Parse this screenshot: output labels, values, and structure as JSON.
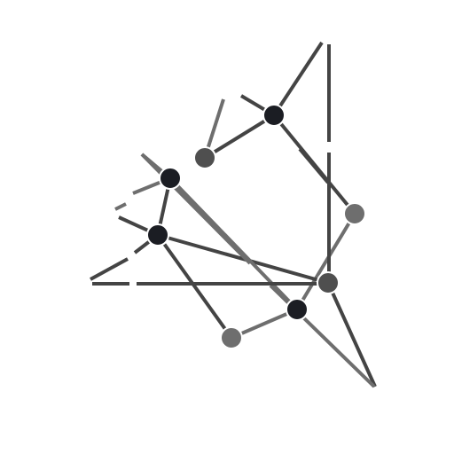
{
  "diagram": {
    "type": "network-graph",
    "background_color": "#ffffff",
    "colors": {
      "line_dark": "#444444",
      "line_light": "#6e6e6e",
      "node_black": "#1b1d23",
      "node_dark_grey": "#4f4f4f",
      "node_grey": "#6e6e6e",
      "node_outline": "#ffffff"
    },
    "nodes": [
      {
        "id": "n1",
        "tone": "node_black"
      },
      {
        "id": "n2",
        "tone": "node_dark_grey"
      },
      {
        "id": "n3",
        "tone": "node_black"
      },
      {
        "id": "n4",
        "tone": "node_black"
      },
      {
        "id": "n5",
        "tone": "node_grey"
      },
      {
        "id": "n6",
        "tone": "node_dark_grey"
      },
      {
        "id": "n7",
        "tone": "node_black"
      },
      {
        "id": "n8",
        "tone": "node_grey"
      }
    ],
    "edges": [
      {
        "id": "e1",
        "from": "n1",
        "to": "n5",
        "tone": "line_dark"
      },
      {
        "id": "e2",
        "from": "n1",
        "to": "n2",
        "tone": "line_dark"
      },
      {
        "id": "e3",
        "from": "n4",
        "to": "n3",
        "tone": "line_dark"
      },
      {
        "id": "e4",
        "from": "n4",
        "to": "n8",
        "tone": "line_dark"
      },
      {
        "id": "e5",
        "from": "n8",
        "to": "n7",
        "tone": "line_light"
      },
      {
        "id": "e6",
        "from": "n7",
        "to": "n5",
        "tone": "line_light"
      },
      {
        "id": "e7",
        "from": "n6",
        "to": "n4",
        "tone": "line_dark"
      },
      {
        "id": "e8",
        "from": "n3",
        "to": "n7",
        "tone": "line_light"
      }
    ]
  }
}
